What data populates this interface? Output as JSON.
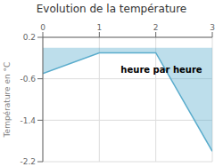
{
  "chart_data": {
    "type": "area",
    "title": "Evolution de la température",
    "ylabel": "Température en °C",
    "annotations": [
      {
        "text": "heure par heure",
        "x": 2.1,
        "y": -0.42
      }
    ],
    "x": [
      0,
      1,
      2,
      3
    ],
    "values": [
      -0.5,
      -0.1,
      -0.1,
      -2.0
    ],
    "color": "#5aaccc",
    "xlim": [
      0,
      3
    ],
    "ylim": [
      -2.2,
      0.2
    ],
    "xticks": [
      0,
      1,
      2,
      3
    ],
    "yticks": [
      0.2,
      -0.6,
      -1.4,
      -2.2
    ],
    "grid": true
  }
}
